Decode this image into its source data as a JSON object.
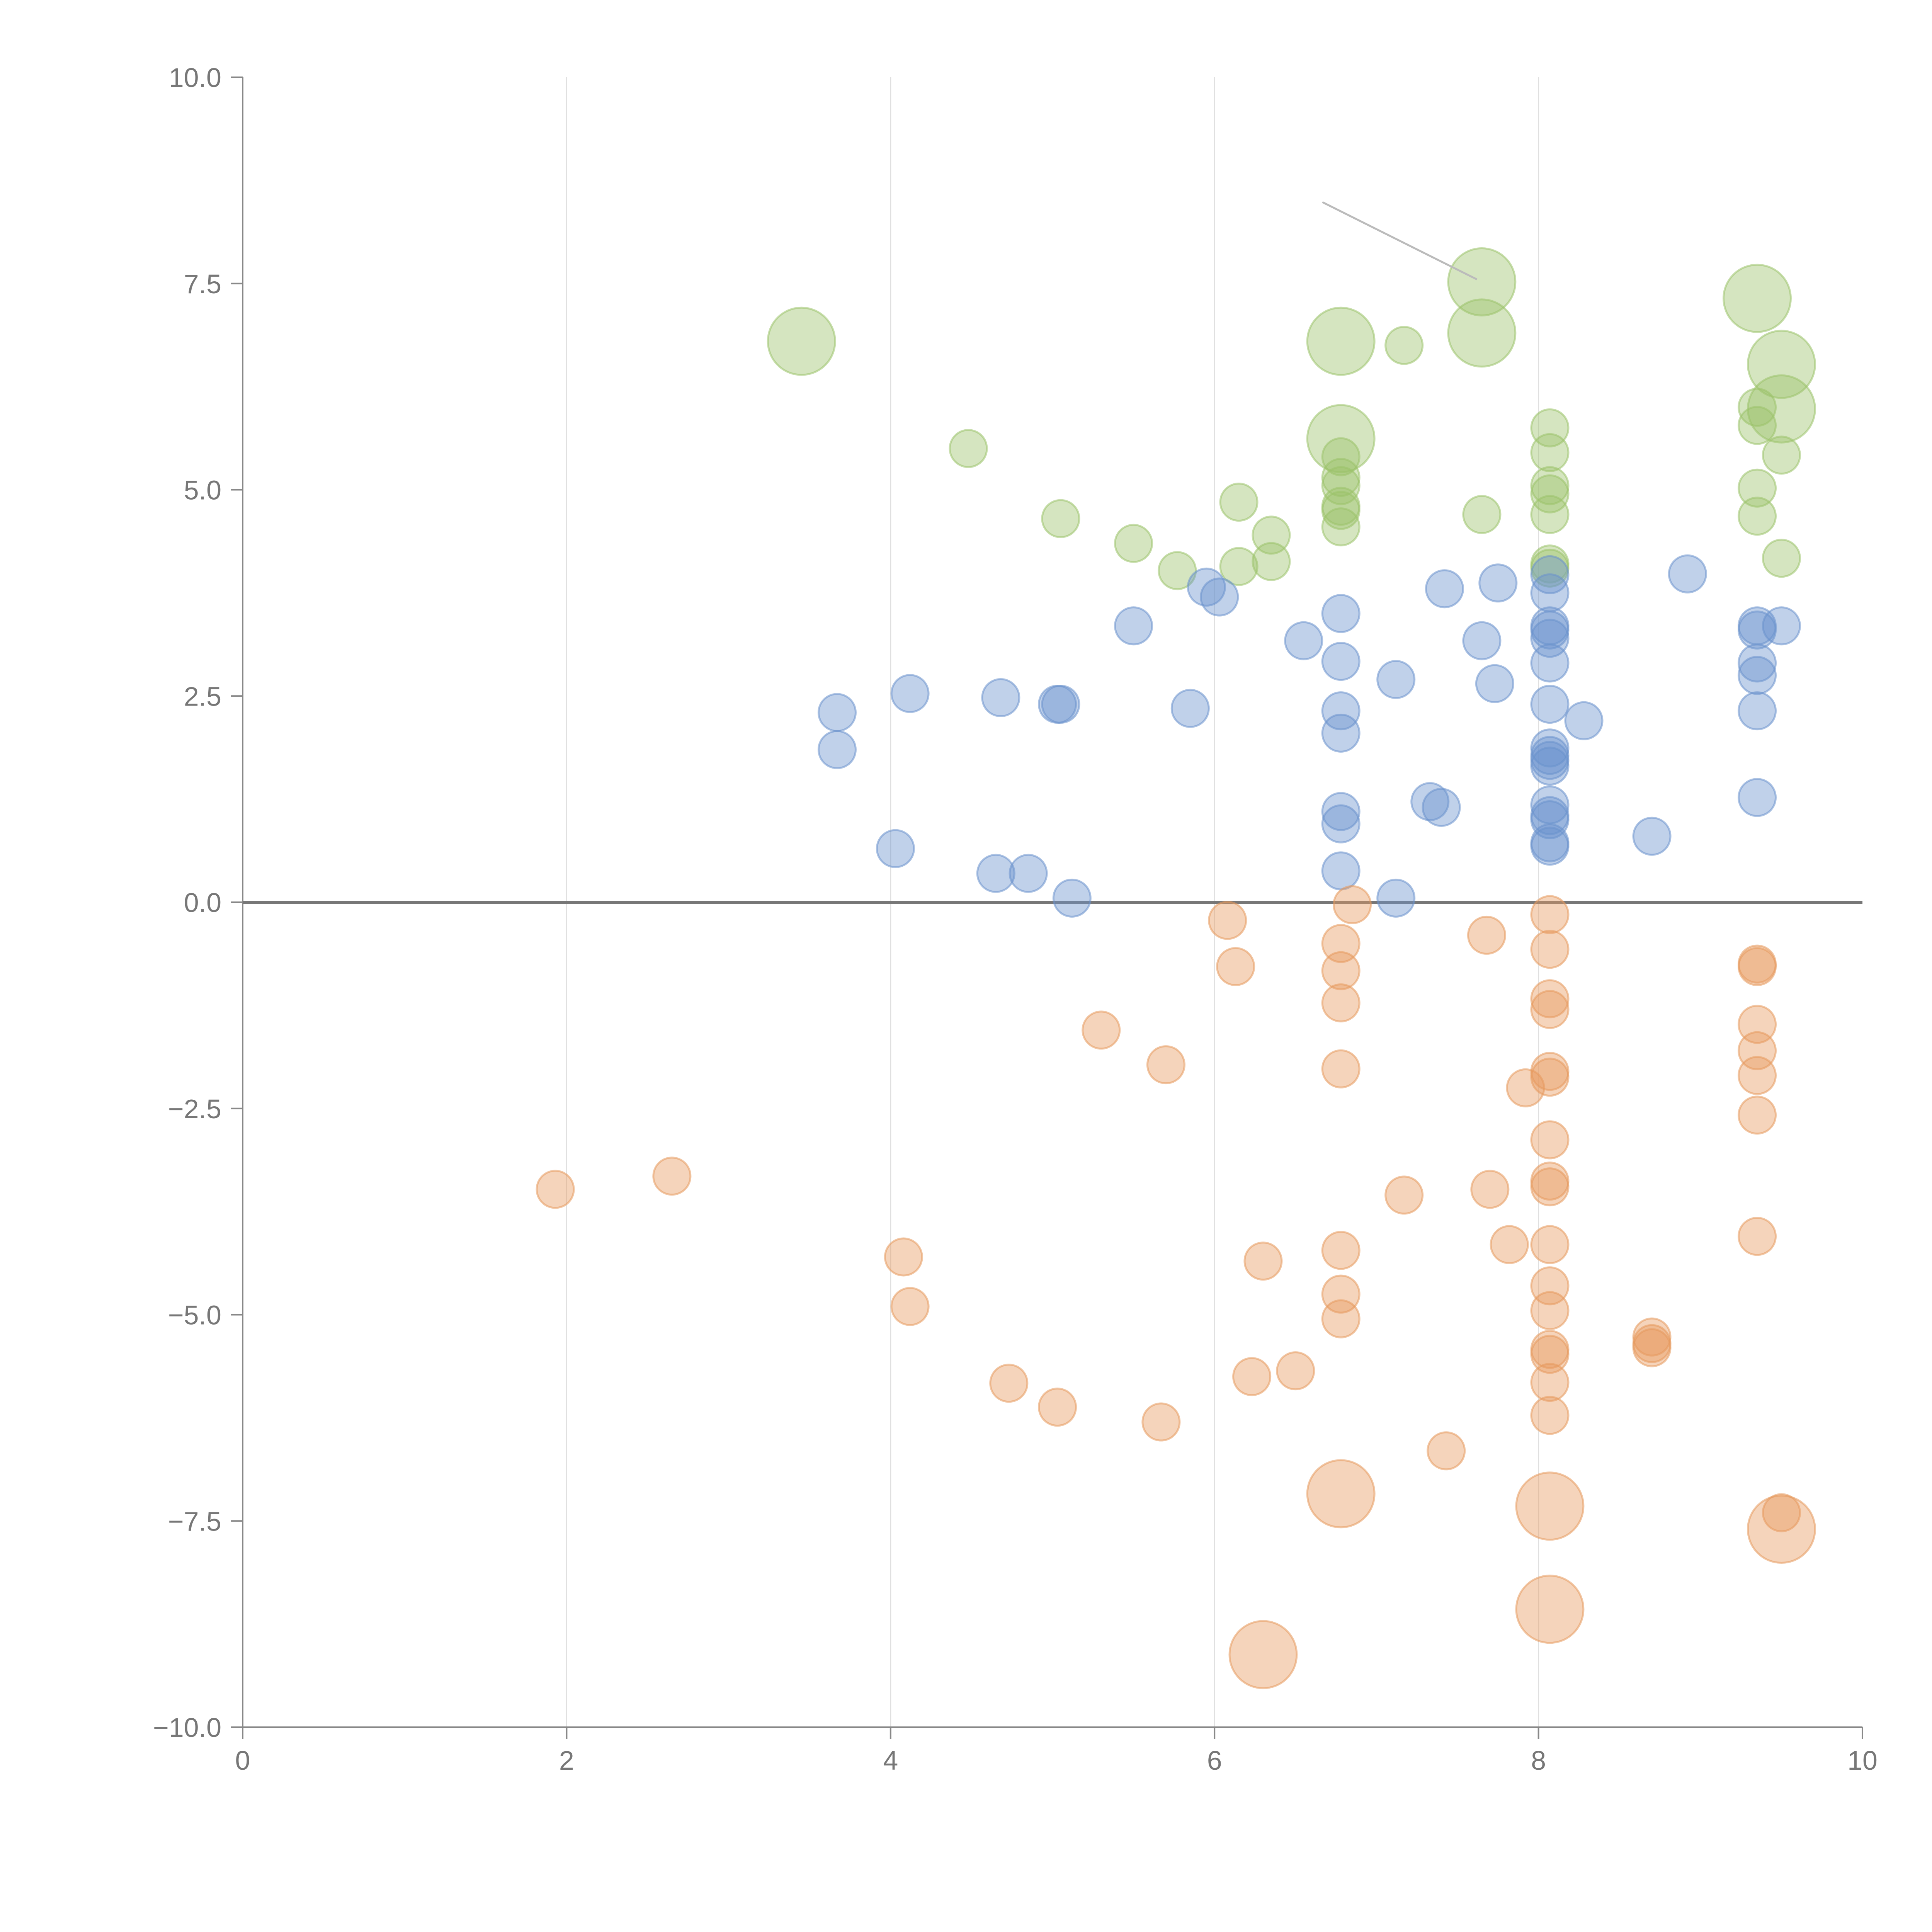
{
  "chart_data": {
    "type": "scatter",
    "title": "",
    "xlabel": "",
    "ylabel": "",
    "xlim": [
      0,
      10
    ],
    "ylim": [
      -10,
      10
    ],
    "grid": {
      "x": true,
      "y": false
    },
    "x_ticks": [
      0,
      2,
      4,
      6,
      8,
      10
    ],
    "x_tick_labels": [
      "0",
      "2",
      "4",
      "6",
      "8",
      "10"
    ],
    "y_ticks": [
      10,
      7.5,
      5,
      2.5,
      0,
      -2.5,
      -5,
      -7.5,
      -10
    ],
    "y_tick_labels": [
      "10.0",
      "7.5",
      "5.0",
      "2.5",
      "0.0",
      "−2.5",
      "−5.0",
      "−7.5",
      "−10.0"
    ],
    "reference_line": {
      "y": 0
    },
    "colors": {
      "green": "#9bc26a",
      "blue": "#6a92cc",
      "orange": "#e6995c"
    },
    "size_unit": "relative bubble size (1 = small)",
    "series": [
      {
        "name": "green",
        "points": [
          [
            3.45,
            6.8,
            1.8
          ],
          [
            4.48,
            5.5,
            1
          ],
          [
            5.05,
            4.65,
            1
          ],
          [
            5.5,
            4.35,
            1
          ],
          [
            5.77,
            4.02,
            1
          ],
          [
            6.15,
            4.85,
            1
          ],
          [
            6.15,
            4.07,
            1
          ],
          [
            6.35,
            4.45,
            1
          ],
          [
            6.35,
            4.13,
            1
          ],
          [
            6.78,
            6.8,
            1.8
          ],
          [
            6.78,
            5.62,
            1.8
          ],
          [
            6.78,
            5.4,
            1
          ],
          [
            6.78,
            5.15,
            1
          ],
          [
            6.78,
            5.05,
            1
          ],
          [
            6.78,
            4.8,
            1
          ],
          [
            6.78,
            4.75,
            1
          ],
          [
            6.78,
            4.55,
            1
          ],
          [
            7.17,
            6.75,
            1
          ],
          [
            7.65,
            7.52,
            1.8
          ],
          [
            7.65,
            6.9,
            1.8
          ],
          [
            7.65,
            4.7,
            1
          ],
          [
            8.07,
            5.75,
            1
          ],
          [
            8.07,
            5.45,
            1
          ],
          [
            8.07,
            5.05,
            1
          ],
          [
            8.07,
            4.95,
            1
          ],
          [
            8.07,
            4.7,
            1
          ],
          [
            8.07,
            4.1,
            1
          ],
          [
            8.07,
            4.05,
            1
          ],
          [
            9.35,
            7.32,
            1.8
          ],
          [
            9.35,
            6.0,
            1
          ],
          [
            9.35,
            5.78,
            1
          ],
          [
            9.35,
            5.02,
            1
          ],
          [
            9.35,
            4.68,
            1
          ],
          [
            9.5,
            6.52,
            1.8
          ],
          [
            9.5,
            5.98,
            1.8
          ],
          [
            9.5,
            5.42,
            1
          ],
          [
            9.5,
            4.17,
            1
          ]
        ]
      },
      {
        "name": "blue",
        "points": [
          [
            3.67,
            2.3,
            1
          ],
          [
            3.67,
            1.85,
            1
          ],
          [
            4.03,
            0.65,
            1
          ],
          [
            4.12,
            2.53,
            1
          ],
          [
            4.65,
            0.35,
            1
          ],
          [
            4.68,
            2.48,
            1
          ],
          [
            4.85,
            0.35,
            1
          ],
          [
            5.03,
            2.4,
            1
          ],
          [
            5.05,
            2.4,
            1
          ],
          [
            5.12,
            0.05,
            1
          ],
          [
            5.5,
            3.35,
            1
          ],
          [
            5.85,
            2.35,
            1
          ],
          [
            5.95,
            3.82,
            1
          ],
          [
            6.03,
            3.7,
            1
          ],
          [
            6.55,
            3.17,
            1
          ],
          [
            6.78,
            3.5,
            1
          ],
          [
            6.78,
            2.92,
            1
          ],
          [
            6.78,
            2.32,
            1
          ],
          [
            6.78,
            2.05,
            1
          ],
          [
            6.78,
            1.1,
            1
          ],
          [
            6.78,
            0.95,
            1
          ],
          [
            6.78,
            0.38,
            1
          ],
          [
            7.12,
            2.7,
            1
          ],
          [
            7.12,
            0.05,
            1
          ],
          [
            7.33,
            1.22,
            1
          ],
          [
            7.4,
            1.15,
            1
          ],
          [
            7.42,
            3.8,
            1
          ],
          [
            7.65,
            3.17,
            1
          ],
          [
            7.73,
            2.65,
            1
          ],
          [
            7.75,
            3.87,
            1
          ],
          [
            8.07,
            3.97,
            1
          ],
          [
            8.07,
            3.75,
            1
          ],
          [
            8.07,
            3.35,
            1
          ],
          [
            8.07,
            3.3,
            1
          ],
          [
            8.07,
            3.2,
            1
          ],
          [
            8.07,
            2.9,
            1
          ],
          [
            8.07,
            2.4,
            1
          ],
          [
            8.07,
            1.87,
            1
          ],
          [
            8.07,
            1.78,
            1
          ],
          [
            8.07,
            1.72,
            1
          ],
          [
            8.07,
            1.65,
            1
          ],
          [
            8.07,
            1.18,
            1
          ],
          [
            8.07,
            1.05,
            1
          ],
          [
            8.07,
            1.0,
            1
          ],
          [
            8.07,
            0.72,
            1
          ],
          [
            8.07,
            0.68,
            1
          ],
          [
            8.28,
            2.2,
            1
          ],
          [
            8.7,
            0.8,
            1
          ],
          [
            8.92,
            3.98,
            1
          ],
          [
            9.35,
            3.35,
            1
          ],
          [
            9.35,
            3.3,
            1
          ],
          [
            9.35,
            2.9,
            1
          ],
          [
            9.35,
            2.75,
            1
          ],
          [
            9.35,
            2.32,
            1
          ],
          [
            9.35,
            1.27,
            1
          ],
          [
            9.5,
            3.35,
            1
          ]
        ]
      },
      {
        "name": "orange",
        "points": [
          [
            1.93,
            -3.48,
            1
          ],
          [
            2.65,
            -3.32,
            1
          ],
          [
            4.08,
            -4.3,
            1
          ],
          [
            4.12,
            -4.9,
            1
          ],
          [
            4.73,
            -5.83,
            1
          ],
          [
            5.03,
            -6.12,
            1
          ],
          [
            5.3,
            -1.55,
            1
          ],
          [
            5.7,
            -1.97,
            1
          ],
          [
            5.67,
            -6.3,
            1
          ],
          [
            6.08,
            -0.22,
            1
          ],
          [
            6.13,
            -0.78,
            1
          ],
          [
            6.23,
            -5.75,
            1
          ],
          [
            6.3,
            -4.35,
            1
          ],
          [
            6.3,
            -9.12,
            1.8
          ],
          [
            6.5,
            -5.68,
            1
          ],
          [
            6.78,
            -0.5,
            1
          ],
          [
            6.78,
            -0.83,
            1
          ],
          [
            6.78,
            -1.22,
            1
          ],
          [
            6.78,
            -2.02,
            1
          ],
          [
            6.78,
            -4.22,
            1
          ],
          [
            6.78,
            -4.75,
            1
          ],
          [
            6.78,
            -5.05,
            1
          ],
          [
            6.78,
            -7.17,
            1.8
          ],
          [
            6.85,
            -0.03,
            1
          ],
          [
            7.17,
            -3.55,
            1
          ],
          [
            7.43,
            -6.65,
            1
          ],
          [
            7.68,
            -0.4,
            1
          ],
          [
            7.7,
            -3.48,
            1
          ],
          [
            7.82,
            -4.15,
            1
          ],
          [
            7.92,
            -2.25,
            1
          ],
          [
            8.07,
            -0.15,
            1
          ],
          [
            8.07,
            -0.57,
            1
          ],
          [
            8.07,
            -1.17,
            1
          ],
          [
            8.07,
            -1.3,
            1
          ],
          [
            8.07,
            -2.05,
            1
          ],
          [
            8.07,
            -2.12,
            1
          ],
          [
            8.07,
            -2.88,
            1
          ],
          [
            8.07,
            -3.38,
            1
          ],
          [
            8.07,
            -3.45,
            1
          ],
          [
            8.07,
            -4.15,
            1
          ],
          [
            8.07,
            -4.65,
            1
          ],
          [
            8.07,
            -4.95,
            1
          ],
          [
            8.07,
            -5.42,
            1
          ],
          [
            8.07,
            -5.48,
            1
          ],
          [
            8.07,
            -5.82,
            1
          ],
          [
            8.07,
            -6.22,
            1
          ],
          [
            8.07,
            -7.32,
            1.8
          ],
          [
            8.07,
            -8.57,
            1.8
          ],
          [
            8.7,
            -5.27,
            1
          ],
          [
            8.7,
            -5.35,
            1
          ],
          [
            8.7,
            -5.4,
            1
          ],
          [
            9.35,
            -0.75,
            1
          ],
          [
            9.35,
            -0.78,
            1
          ],
          [
            9.35,
            -1.48,
            1
          ],
          [
            9.35,
            -1.8,
            1
          ],
          [
            9.35,
            -2.1,
            1
          ],
          [
            9.35,
            -2.58,
            1
          ],
          [
            9.35,
            -4.05,
            1
          ],
          [
            9.5,
            -7.4,
            1
          ],
          [
            9.5,
            -7.6,
            1.8
          ]
        ]
      }
    ]
  }
}
